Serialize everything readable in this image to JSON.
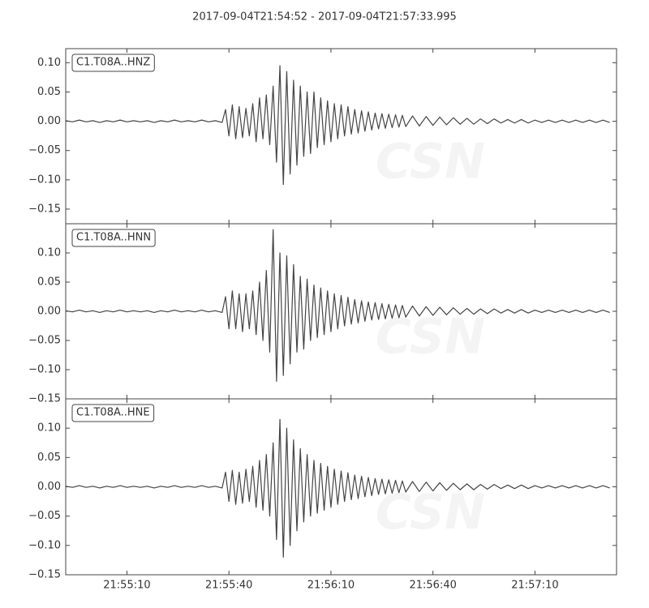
{
  "chart_data": {
    "type": "line",
    "title": "2017-09-04T21:54:52  -  2017-09-04T21:57:33.995",
    "watermark": "CSN",
    "x": [
      0,
      2,
      4,
      6,
      8,
      10,
      12,
      14,
      16,
      18,
      20,
      22,
      24,
      26,
      28,
      30,
      32,
      34,
      36,
      38,
      40,
      42,
      44,
      46,
      47,
      48,
      49,
      50,
      51,
      52,
      53,
      54,
      55,
      56,
      57,
      58,
      59,
      60,
      61,
      62,
      63,
      64,
      65,
      66,
      67,
      68,
      69,
      70,
      71,
      72,
      73,
      74,
      75,
      76,
      77,
      78,
      79,
      80,
      81,
      82,
      83,
      84,
      85,
      86,
      87,
      88,
      89,
      90,
      91,
      92,
      93,
      94,
      95,
      96,
      97,
      98,
      99,
      100,
      102,
      104,
      106,
      108,
      110,
      112,
      114,
      116,
      118,
      120,
      122,
      124,
      126,
      128,
      130,
      132,
      134,
      136,
      138,
      140,
      142,
      144,
      146,
      148,
      150,
      152,
      154,
      156,
      158,
      160
    ],
    "xlim": [
      0,
      161.995
    ],
    "xticks": [
      {
        "value": 18,
        "label": "21:55:10"
      },
      {
        "value": 48,
        "label": "21:55:40"
      },
      {
        "value": 78,
        "label": "21:56:10"
      },
      {
        "value": 108,
        "label": "21:56:40"
      },
      {
        "value": 138,
        "label": "21:57:10"
      }
    ],
    "series": [
      {
        "name": "C1.T08A..HNZ",
        "color": "#444444",
        "ylim": [
          -0.175,
          0.124
        ],
        "yticks": [
          {
            "value": -0.15,
            "label": "−0.15"
          },
          {
            "value": -0.1,
            "label": "−0.10"
          },
          {
            "value": -0.05,
            "label": "−0.05"
          },
          {
            "value": 0,
            "label": "0.00"
          },
          0.05,
          {
            "value": 0.1,
            "label": "0.10"
          }
        ],
        "values": [
          0.001,
          -0.001,
          0.002,
          -0.001,
          0.001,
          -0.002,
          0.001,
          -0.001,
          0.002,
          -0.001,
          0.001,
          -0.001,
          0.001,
          -0.002,
          0.001,
          -0.001,
          0.002,
          -0.001,
          0.001,
          -0.001,
          0.002,
          -0.001,
          0.001,
          -0.002,
          0.02,
          -0.025,
          0.028,
          -0.03,
          0.025,
          -0.028,
          0.022,
          -0.025,
          0.03,
          -0.035,
          0.04,
          -0.03,
          0.045,
          -0.04,
          0.06,
          -0.07,
          0.095,
          -0.108,
          0.085,
          -0.09,
          0.07,
          -0.075,
          0.06,
          -0.06,
          0.05,
          -0.055,
          0.05,
          -0.045,
          0.04,
          -0.04,
          0.035,
          -0.035,
          0.03,
          -0.03,
          0.028,
          -0.025,
          0.025,
          -0.022,
          0.02,
          -0.02,
          0.018,
          -0.017,
          0.016,
          -0.015,
          0.014,
          -0.013,
          0.013,
          -0.012,
          0.012,
          -0.011,
          0.011,
          -0.01,
          0.01,
          -0.009,
          0.009,
          -0.008,
          0.008,
          -0.007,
          0.007,
          -0.006,
          0.006,
          -0.005,
          0.005,
          -0.005,
          0.004,
          -0.004,
          0.004,
          -0.003,
          0.003,
          -0.003,
          0.003,
          -0.003,
          0.002,
          -0.002,
          0.002,
          -0.002,
          0.002,
          -0.002,
          0.002,
          -0.002,
          0.002,
          -0.002,
          0.002,
          -0.002
        ]
      },
      {
        "name": "C1.T08A..HNN",
        "color": "#444444",
        "ylim": [
          -0.15,
          0.15
        ],
        "yticks": [
          {
            "value": -0.15,
            "label": "−0.15"
          },
          {
            "value": -0.1,
            "label": "−0.10"
          },
          {
            "value": -0.05,
            "label": "−0.05"
          },
          {
            "value": 0,
            "label": "0.00"
          },
          0.05,
          {
            "value": 0.1,
            "label": "0.10"
          }
        ],
        "values": [
          0.001,
          -0.001,
          0.002,
          -0.001,
          0.001,
          -0.002,
          0.001,
          -0.001,
          0.002,
          -0.001,
          0.001,
          -0.001,
          0.001,
          -0.002,
          0.001,
          -0.001,
          0.002,
          -0.001,
          0.001,
          -0.001,
          0.002,
          -0.001,
          0.001,
          -0.002,
          0.025,
          -0.03,
          0.035,
          -0.03,
          0.03,
          -0.035,
          0.03,
          -0.03,
          0.035,
          -0.04,
          0.05,
          -0.05,
          0.07,
          -0.07,
          0.14,
          -0.12,
          0.1,
          -0.11,
          0.095,
          -0.09,
          0.08,
          -0.07,
          0.06,
          -0.065,
          0.055,
          -0.05,
          0.045,
          -0.045,
          0.04,
          -0.04,
          0.035,
          -0.035,
          0.03,
          -0.03,
          0.027,
          -0.025,
          0.024,
          -0.022,
          0.02,
          -0.02,
          0.018,
          -0.017,
          0.016,
          -0.015,
          0.015,
          -0.014,
          0.013,
          -0.013,
          0.012,
          -0.012,
          0.011,
          -0.011,
          0.01,
          -0.01,
          0.009,
          -0.008,
          0.008,
          -0.007,
          0.007,
          -0.006,
          0.006,
          -0.005,
          0.005,
          -0.005,
          0.004,
          -0.004,
          0.004,
          -0.003,
          0.003,
          -0.003,
          0.003,
          -0.003,
          0.002,
          -0.002,
          0.002,
          -0.002,
          0.002,
          -0.002,
          0.002,
          -0.002,
          0.002,
          -0.002,
          0.002,
          -0.002
        ]
      },
      {
        "name": "C1.T08A..HNE",
        "color": "#444444",
        "ylim": [
          -0.15,
          0.15
        ],
        "yticks": [
          {
            "value": -0.15,
            "label": "−0.15"
          },
          {
            "value": -0.1,
            "label": "−0.10"
          },
          {
            "value": -0.05,
            "label": "−0.05"
          },
          {
            "value": 0,
            "label": "0.00"
          },
          0.05,
          {
            "value": 0.1,
            "label": "0.10"
          }
        ],
        "values": [
          0.001,
          -0.001,
          0.002,
          -0.001,
          0.001,
          -0.002,
          0.001,
          -0.001,
          0.002,
          -0.001,
          0.001,
          -0.001,
          0.001,
          -0.002,
          0.001,
          -0.001,
          0.002,
          -0.001,
          0.001,
          -0.001,
          0.002,
          -0.001,
          0.001,
          -0.002,
          0.025,
          -0.025,
          0.028,
          -0.03,
          0.025,
          -0.028,
          0.03,
          -0.025,
          0.035,
          -0.035,
          0.045,
          -0.04,
          0.055,
          -0.05,
          0.075,
          -0.09,
          0.115,
          -0.12,
          0.1,
          -0.1,
          0.08,
          -0.075,
          0.065,
          -0.06,
          0.055,
          -0.05,
          0.045,
          -0.045,
          0.04,
          -0.04,
          0.035,
          -0.035,
          0.03,
          -0.03,
          0.027,
          -0.025,
          0.024,
          -0.022,
          0.02,
          -0.02,
          0.018,
          -0.017,
          0.016,
          -0.015,
          0.014,
          -0.013,
          0.013,
          -0.012,
          0.012,
          -0.011,
          0.011,
          -0.01,
          0.01,
          -0.009,
          0.009,
          -0.008,
          0.008,
          -0.007,
          0.007,
          -0.006,
          0.006,
          -0.005,
          0.005,
          -0.005,
          0.004,
          -0.004,
          0.004,
          -0.003,
          0.003,
          -0.003,
          0.003,
          -0.003,
          0.002,
          -0.002,
          0.002,
          -0.002,
          0.002,
          -0.002,
          0.002,
          -0.002,
          0.002,
          -0.002,
          0.002,
          -0.002
        ]
      }
    ]
  }
}
